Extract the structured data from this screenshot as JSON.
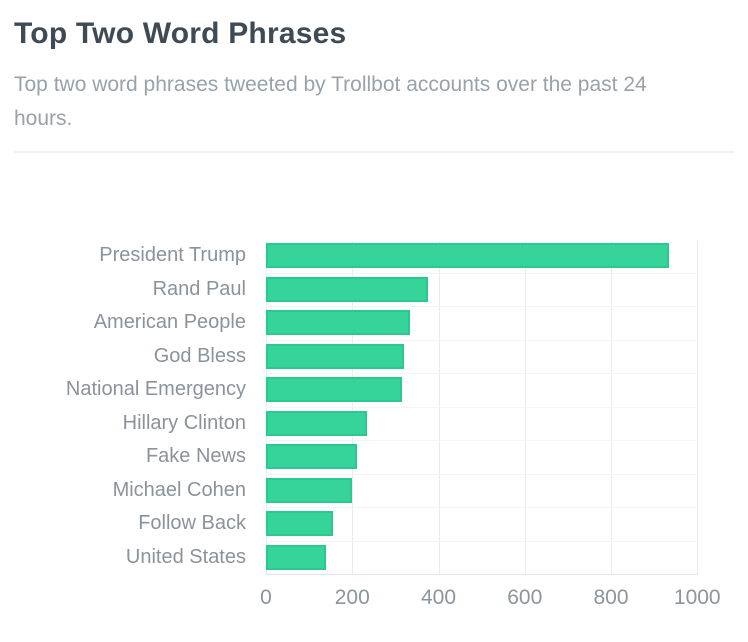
{
  "header": {
    "title": "Top Two Word Phrases",
    "subtitle_lines": [
      "Top two word phrases tweeted by Trollbot accounts over the past 24",
      "hours."
    ]
  },
  "colors": {
    "bar_fill": "#36d49b",
    "bar_border": "#29c98f",
    "title_text": "#3e4a54",
    "subtitle_text": "#98a2ab",
    "label_text": "#8a939c",
    "axis_text": "#8b959e",
    "gridline": "#e9ecef",
    "row_separator": "#f2f4f6"
  },
  "chart_data": {
    "type": "bar",
    "orientation": "horizontal",
    "title": "Top Two Word Phrases",
    "subtitle": "Top two word phrases tweeted by Trollbot accounts over the past 24 hours.",
    "categories": [
      "President Trump",
      "Rand Paul",
      "American People",
      "God Bless",
      "National Emergency",
      "Hillary Clinton",
      "Fake News",
      "Michael Cohen",
      "Follow Back",
      "United States"
    ],
    "values": [
      935,
      375,
      335,
      320,
      315,
      235,
      210,
      200,
      155,
      140
    ],
    "xlabel": "",
    "ylabel": "",
    "xlim": [
      0,
      1000
    ],
    "xticks": [
      0,
      200,
      400,
      600,
      800,
      1000
    ],
    "grid": "on",
    "legend": "none"
  }
}
